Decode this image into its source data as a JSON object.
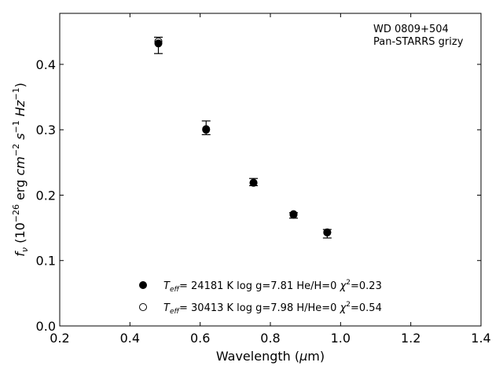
{
  "chart_data": {
    "type": "scatter",
    "title": "",
    "annotation": [
      "WD 0809+504",
      "Pan-STARRS grizy"
    ],
    "xlabel": {
      "prefix": "Wavelength (",
      "symbol": "μ",
      "suffix": "m)"
    },
    "ylabel": {
      "symbol": "f",
      "sub": "ν",
      "open": " (10",
      "exp1": "−26",
      "mid": " erg ",
      "cm": "cm",
      "exp2": "−2",
      "s": " s",
      "exp3": "−1",
      "hz": " Hz",
      "exp4": "−1",
      "close": ")"
    },
    "xlim": [
      0.2,
      1.4
    ],
    "ylim": [
      0.0,
      0.478
    ],
    "xticks": [
      "0.2",
      "0.4",
      "0.6",
      "0.8",
      "1.0",
      "1.2",
      "1.4"
    ],
    "yticks": [
      "0.0",
      "0.1",
      "0.2",
      "0.3",
      "0.4"
    ],
    "grid": false,
    "legend_position": "lower-center",
    "series": [
      {
        "name": "T_eff= 24181 K  log g=7.81  He/H=0  χ²=0.23",
        "marker": "filled-circle",
        "x": [
          0.481,
          0.617,
          0.752,
          0.866,
          0.962
        ],
        "y": [
          0.432,
          0.301,
          0.219,
          0.171,
          0.143
        ]
      },
      {
        "name": "T_eff= 30413 K  log g=7.98  H/He=0  χ²=0.54",
        "marker": "open-circle",
        "x": [
          0.481,
          0.617,
          0.752,
          0.866,
          0.962
        ],
        "y": [
          0.435,
          0.3,
          0.219,
          0.17,
          0.143
        ]
      }
    ],
    "observed": {
      "x": [
        0.481,
        0.617,
        0.752,
        0.866,
        0.962
      ],
      "y": [
        0.429,
        0.303,
        0.22,
        0.169,
        0.141
      ],
      "yerr": [
        0.0125,
        0.0105,
        0.0055,
        0.0042,
        0.0065
      ]
    },
    "legend": [
      {
        "t": "T",
        "sub": "eff",
        "rest": "= 24181 K  log g=7.81  He/H=0  ",
        "chi": "χ",
        "sup": "2",
        "val": "=0.23",
        "marker": "filled"
      },
      {
        "t": "T",
        "sub": "eff",
        "rest": "= 30413 K  log g=7.98  H/He=0  ",
        "chi": "χ",
        "sup": "2",
        "val": "=0.54",
        "marker": "open"
      }
    ],
    "colors": {
      "axis": "#000000",
      "marker": "#000000",
      "background": "#ffffff"
    }
  }
}
